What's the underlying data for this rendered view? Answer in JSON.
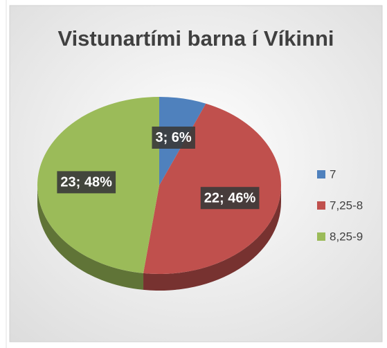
{
  "chart_data": {
    "type": "pie",
    "title": "Vistunartími barna í Víkinni",
    "categories": [
      "7",
      "7,25-8",
      "8,25-9"
    ],
    "values": [
      3,
      22,
      23
    ],
    "value_labels": [
      "3; 6%",
      "22; 46%",
      "23; 48%"
    ],
    "colors": [
      "#4f81bd",
      "#c0504d",
      "#9bbb59"
    ],
    "legend": "right"
  }
}
